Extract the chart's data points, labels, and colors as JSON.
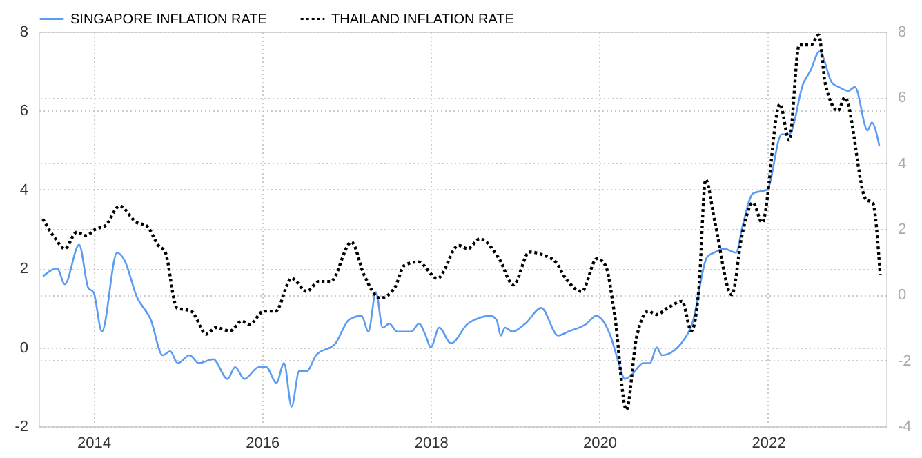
{
  "chart_data": {
    "type": "line",
    "legend": "top left",
    "grid": true,
    "xlim": [
      2013.35,
      2023.4
    ],
    "xticks": [
      2014,
      2016,
      2018,
      2020,
      2022
    ],
    "ylim": [
      -2,
      8
    ],
    "yticks": [
      -2,
      0,
      2,
      4,
      6,
      8
    ],
    "y2lim": [
      -4,
      8
    ],
    "y2ticks": [
      -4,
      -2,
      0,
      2,
      4,
      6,
      8
    ],
    "series": [
      {
        "name": "SINGAPORE INFLATION RATE",
        "color": "#5b9cf2",
        "line_style": "solid",
        "x": [
          2013.4,
          2013.57,
          2013.66,
          2013.83,
          2013.94,
          2014.0,
          2014.1,
          2014.28,
          2014.37,
          2014.51,
          2014.68,
          2014.82,
          2014.91,
          2015.0,
          2015.14,
          2015.25,
          2015.42,
          2015.59,
          2015.68,
          2015.79,
          2015.96,
          2016.05,
          2016.17,
          2016.26,
          2016.35,
          2016.44,
          2016.53,
          2016.64,
          2016.87,
          2017.03,
          2017.18,
          2017.26,
          2017.35,
          2017.43,
          2017.51,
          2017.6,
          2017.77,
          2017.86,
          2017.94,
          2018.0,
          2018.1,
          2018.24,
          2018.44,
          2018.71,
          2018.78,
          2018.83,
          2018.88,
          2018.97,
          2019.12,
          2019.31,
          2019.51,
          2019.63,
          2019.85,
          2019.96,
          2020.13,
          2020.23,
          2020.3,
          2020.38,
          2020.52,
          2020.6,
          2020.68,
          2020.74,
          2020.97,
          2021.1,
          2021.28,
          2021.36,
          2021.48,
          2021.62,
          2021.7,
          2021.82,
          2021.99,
          2022.16,
          2022.25,
          2022.42,
          2022.5,
          2022.61,
          2022.76,
          2022.84,
          2022.95,
          2023.03,
          2023.18,
          2023.23,
          2023.32
        ],
        "values": [
          1.8,
          2.0,
          1.6,
          2.6,
          1.5,
          1.4,
          0.4,
          2.4,
          2.2,
          1.3,
          0.7,
          -0.2,
          -0.1,
          -0.4,
          -0.2,
          -0.4,
          -0.3,
          -0.8,
          -0.5,
          -0.8,
          -0.5,
          -0.5,
          -0.9,
          -0.4,
          -1.5,
          -0.6,
          -0.6,
          -0.2,
          0.1,
          0.7,
          0.8,
          0.4,
          1.4,
          0.5,
          0.6,
          0.4,
          0.4,
          0.6,
          0.3,
          0.0,
          0.5,
          0.1,
          0.6,
          0.8,
          0.7,
          0.3,
          0.5,
          0.4,
          0.6,
          1.0,
          0.3,
          0.4,
          0.6,
          0.8,
          0.3,
          -0.4,
          -0.8,
          -0.7,
          -0.4,
          -0.4,
          0.0,
          -0.2,
          0.1,
          0.6,
          2.3,
          2.4,
          2.5,
          2.4,
          3.1,
          3.9,
          4.0,
          5.4,
          5.4,
          6.7,
          7.0,
          7.5,
          6.7,
          6.6,
          6.5,
          6.6,
          5.5,
          5.7,
          5.1
        ]
      },
      {
        "name": "THAILAND INFLATION RATE",
        "color": "#000000",
        "line_style": "dotted",
        "axis": "y2",
        "x": [
          2013.4,
          2013.55,
          2013.66,
          2013.8,
          2013.91,
          2014.03,
          2014.14,
          2014.31,
          2014.51,
          2014.63,
          2014.77,
          2014.85,
          2014.99,
          2015.16,
          2015.34,
          2015.45,
          2015.62,
          2015.76,
          2015.85,
          2016.02,
          2016.16,
          2016.35,
          2016.53,
          2016.67,
          2016.81,
          2017.06,
          2017.21,
          2017.4,
          2017.57,
          2017.69,
          2017.85,
          2018.08,
          2018.33,
          2018.44,
          2018.58,
          2018.81,
          2018.98,
          2019.17,
          2019.34,
          2019.48,
          2019.6,
          2019.79,
          2019.97,
          2020.07,
          2020.18,
          2020.32,
          2020.44,
          2020.58,
          2020.68,
          2020.81,
          2020.98,
          2021.09,
          2021.18,
          2021.26,
          2021.37,
          2021.57,
          2021.69,
          2021.82,
          2021.93,
          2022.14,
          2022.25,
          2022.37,
          2022.51,
          2022.6,
          2022.68,
          2022.83,
          2022.91,
          2023.16,
          2023.24,
          2023.33
        ],
        "values": [
          2.3,
          1.7,
          1.4,
          1.9,
          1.8,
          2.0,
          2.1,
          2.7,
          2.2,
          2.1,
          1.5,
          1.3,
          -0.4,
          -0.5,
          -1.2,
          -1.0,
          -1.1,
          -0.8,
          -0.9,
          -0.5,
          -0.5,
          0.5,
          0.1,
          0.4,
          0.4,
          1.6,
          0.6,
          -0.1,
          0.2,
          0.9,
          1.0,
          0.5,
          1.5,
          1.4,
          1.7,
          1.1,
          0.3,
          1.3,
          1.2,
          1.0,
          0.5,
          0.1,
          1.1,
          0.9,
          -0.6,
          -3.5,
          -1.3,
          -0.5,
          -0.6,
          -0.4,
          -0.2,
          -1.1,
          0.2,
          3.5,
          2.2,
          0.0,
          1.8,
          2.8,
          2.2,
          5.8,
          4.7,
          7.6,
          7.6,
          7.9,
          6.4,
          5.6,
          6.0,
          2.9,
          2.8,
          0.6
        ]
      }
    ]
  }
}
